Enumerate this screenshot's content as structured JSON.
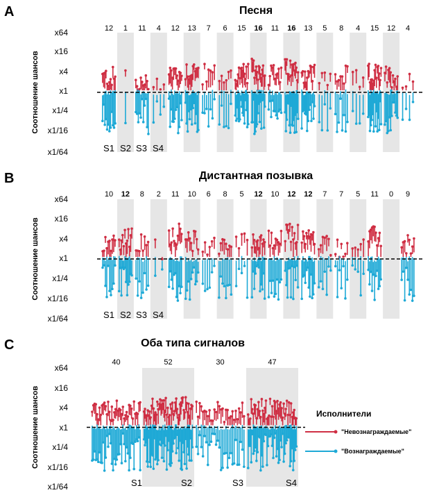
{
  "colors": {
    "unrewarded": "#cf2e43",
    "rewarded": "#1ea9d6",
    "shade": "#e6e6e6",
    "ref_line": "#000000"
  },
  "legend": {
    "title": "Исполнители",
    "items": [
      {
        "label": "\"Невознаграждаемые\"",
        "color": "#cf2e43"
      },
      {
        "label": "\"Вознаграждаемые\"",
        "color": "#1ea9d6"
      }
    ]
  },
  "chart_data": [
    {
      "type": "range-dot",
      "panel": "A",
      "title": "Песня",
      "ylabel": "Соотношение шансов",
      "yticks": [
        "x64",
        "x16",
        "x4",
        "x1",
        "x1/4",
        "x1/16",
        "x1/64"
      ],
      "ylim_log2": [
        -6,
        6
      ],
      "reference_line": 1,
      "counts": [
        {
          "text": "12",
          "bold": false
        },
        {
          "text": "1",
          "bold": false
        },
        {
          "text": "11",
          "bold": false
        },
        {
          "text": "4",
          "bold": false
        },
        {
          "text": "12",
          "bold": false
        },
        {
          "text": "13",
          "bold": false
        },
        {
          "text": "7",
          "bold": false
        },
        {
          "text": "6",
          "bold": false
        },
        {
          "text": "15",
          "bold": false
        },
        {
          "text": "16",
          "bold": true
        },
        {
          "text": "11",
          "bold": false
        },
        {
          "text": "16",
          "bold": true
        },
        {
          "text": "13",
          "bold": false
        },
        {
          "text": "5",
          "bold": false
        },
        {
          "text": "8",
          "bold": false
        },
        {
          "text": "4",
          "bold": false
        },
        {
          "text": "15",
          "bold": false
        },
        {
          "text": "12",
          "bold": false
        },
        {
          "text": "4",
          "bold": false
        }
      ],
      "group_labels": [
        "S1",
        "S2",
        "S3",
        "S4"
      ],
      "median_positive_log2": [
        1.5,
        2,
        0.8,
        1.2,
        2,
        2.2,
        1.8,
        1.6,
        1.8,
        2.3,
        1.8,
        2.3,
        1.9,
        1.4,
        1.6,
        1.2,
        1.8,
        1.6,
        1
      ]
    },
    {
      "type": "range-dot",
      "panel": "B",
      "title": "Дистантная позывка",
      "ylabel": "Соотношение шансов",
      "yticks": [
        "x64",
        "x16",
        "x4",
        "x1",
        "x1/4",
        "x1/16",
        "x1/64"
      ],
      "ylim_log2": [
        -6,
        6
      ],
      "reference_line": 1,
      "counts": [
        {
          "text": "10",
          "bold": false
        },
        {
          "text": "12",
          "bold": true
        },
        {
          "text": "8",
          "bold": false
        },
        {
          "text": "2",
          "bold": false
        },
        {
          "text": "11",
          "bold": false
        },
        {
          "text": "10",
          "bold": false
        },
        {
          "text": "6",
          "bold": false
        },
        {
          "text": "8",
          "bold": false
        },
        {
          "text": "5",
          "bold": false
        },
        {
          "text": "12",
          "bold": true
        },
        {
          "text": "10",
          "bold": false
        },
        {
          "text": "12",
          "bold": true
        },
        {
          "text": "12",
          "bold": true
        },
        {
          "text": "7",
          "bold": false
        },
        {
          "text": "7",
          "bold": false
        },
        {
          "text": "5",
          "bold": false
        },
        {
          "text": "11",
          "bold": false
        },
        {
          "text": "0",
          "bold": false
        },
        {
          "text": "9",
          "bold": false
        }
      ],
      "group_labels": [
        "S1",
        "S2",
        "S3",
        "S4"
      ],
      "median_positive_log2": [
        1.8,
        2,
        1.5,
        1,
        2.5,
        1.8,
        1.4,
        1.6,
        1.6,
        2,
        1.8,
        2.5,
        2.2,
        1.4,
        1.2,
        1.2,
        2.2,
        0.6,
        1.4
      ]
    },
    {
      "type": "range-dot",
      "panel": "C",
      "title": "Оба типа сигналов",
      "ylabel": "Соотношение шансов",
      "yticks": [
        "x64",
        "x16",
        "x4",
        "x1",
        "x1/4",
        "x1/16",
        "x1/64"
      ],
      "ylim_log2": [
        -6,
        6
      ],
      "reference_line": 1,
      "counts": [
        {
          "text": "40",
          "bold": false
        },
        {
          "text": "52",
          "bold": false
        },
        {
          "text": "30",
          "bold": false
        },
        {
          "text": "47",
          "bold": false
        }
      ],
      "group_labels": [
        "S1",
        "S2",
        "S3",
        "S4"
      ],
      "median_positive_log2": [
        1.6,
        2,
        1.6,
        1.8
      ]
    }
  ]
}
